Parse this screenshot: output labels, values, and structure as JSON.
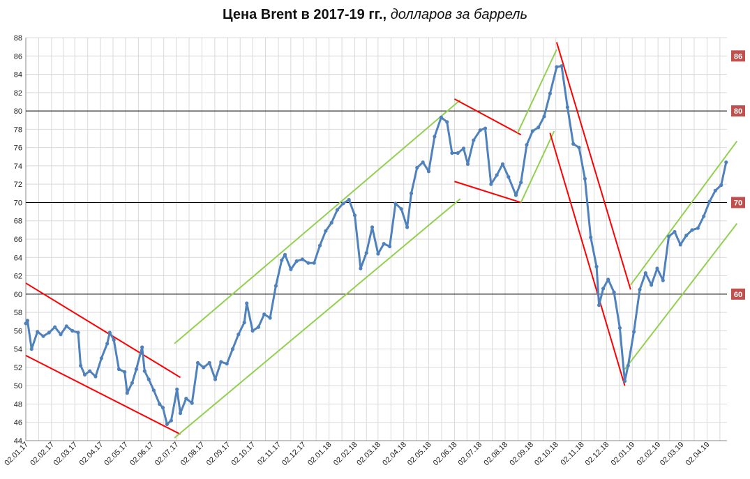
{
  "chart_data": {
    "type": "line",
    "title": "Цена Brent в 2017-19 гг.,",
    "subtitle": "долларов за баррель",
    "xlabel": "",
    "ylabel": "",
    "ylim": [
      44,
      88
    ],
    "yticks": [
      44,
      46,
      48,
      50,
      52,
      54,
      56,
      58,
      60,
      62,
      64,
      66,
      68,
      70,
      72,
      74,
      76,
      78,
      80,
      82,
      84,
      86,
      88
    ],
    "xlim": [
      "2017-01-02",
      "2019-04-26"
    ],
    "xtick_labels": [
      "02.01.17",
      "02.02.17",
      "02.03.17",
      "02.04.17",
      "02.05.17",
      "02.06.17",
      "02.07.17",
      "02.08.17",
      "02.09.17",
      "02.10.17",
      "02.11.17",
      "02.12.17",
      "02.01.18",
      "02.02.18",
      "02.03.18",
      "02.04.18",
      "02.05.18",
      "02.06.18",
      "02.07.18",
      "02.08.18",
      "02.09.18",
      "02.10.18",
      "02.11.18",
      "02.12.18",
      "02.01.19",
      "02.02.19",
      "02.03.19",
      "02.04.19"
    ],
    "grid": true,
    "series": [
      {
        "color": "#4f81bd",
        "x": [
          "2017-01-02",
          "2017-01-04",
          "2017-01-09",
          "2017-01-16",
          "2017-01-23",
          "2017-01-30",
          "2017-02-06",
          "2017-02-13",
          "2017-02-20",
          "2017-02-27",
          "2017-03-06",
          "2017-03-09",
          "2017-03-14",
          "2017-03-20",
          "2017-03-27",
          "2017-04-03",
          "2017-04-10",
          "2017-04-13",
          "2017-04-18",
          "2017-04-24",
          "2017-05-01",
          "2017-05-04",
          "2017-05-10",
          "2017-05-15",
          "2017-05-22",
          "2017-05-25",
          "2017-05-30",
          "2017-06-05",
          "2017-06-12",
          "2017-06-16",
          "2017-06-21",
          "2017-06-26",
          "2017-07-03",
          "2017-07-07",
          "2017-07-14",
          "2017-07-21",
          "2017-07-28",
          "2017-08-04",
          "2017-08-11",
          "2017-08-18",
          "2017-08-25",
          "2017-09-01",
          "2017-09-08",
          "2017-09-15",
          "2017-09-22",
          "2017-09-25",
          "2017-10-02",
          "2017-10-09",
          "2017-10-16",
          "2017-10-23",
          "2017-10-30",
          "2017-11-06",
          "2017-11-10",
          "2017-11-17",
          "2017-11-24",
          "2017-12-01",
          "2017-12-08",
          "2017-12-15",
          "2017-12-22",
          "2017-12-29",
          "2018-01-05",
          "2018-01-12",
          "2018-01-19",
          "2018-01-26",
          "2018-02-02",
          "2018-02-09",
          "2018-02-16",
          "2018-02-23",
          "2018-03-02",
          "2018-03-09",
          "2018-03-16",
          "2018-03-23",
          "2018-03-30",
          "2018-04-06",
          "2018-04-11",
          "2018-04-18",
          "2018-04-25",
          "2018-05-02",
          "2018-05-09",
          "2018-05-17",
          "2018-05-24",
          "2018-05-30",
          "2018-06-06",
          "2018-06-13",
          "2018-06-18",
          "2018-06-25",
          "2018-07-03",
          "2018-07-09",
          "2018-07-16",
          "2018-07-23",
          "2018-07-30",
          "2018-08-06",
          "2018-08-15",
          "2018-08-21",
          "2018-08-28",
          "2018-09-04",
          "2018-09-11",
          "2018-09-18",
          "2018-09-25",
          "2018-10-03",
          "2018-10-09",
          "2018-10-16",
          "2018-10-23",
          "2018-10-30",
          "2018-11-06",
          "2018-11-13",
          "2018-11-20",
          "2018-11-23",
          "2018-11-28",
          "2018-12-04",
          "2018-12-11",
          "2018-12-18",
          "2018-12-24",
          "2018-12-28",
          "2019-01-04",
          "2019-01-11",
          "2019-01-18",
          "2019-01-25",
          "2019-02-01",
          "2019-02-08",
          "2019-02-15",
          "2019-02-22",
          "2019-03-01",
          "2019-03-08",
          "2019-03-15",
          "2019-03-22",
          "2019-03-29",
          "2019-04-05",
          "2019-04-12",
          "2019-04-19",
          "2019-04-25"
        ],
        "values": [
          56.8,
          57.1,
          54.0,
          55.9,
          55.4,
          55.8,
          56.4,
          55.6,
          56.5,
          56.0,
          55.8,
          52.2,
          51.2,
          51.6,
          51.0,
          53.0,
          54.6,
          55.8,
          55.0,
          51.8,
          51.5,
          49.2,
          50.3,
          51.8,
          54.2,
          51.6,
          50.7,
          49.5,
          48.0,
          47.6,
          45.8,
          46.2,
          49.6,
          47.0,
          48.6,
          48.1,
          52.5,
          52.0,
          52.5,
          50.7,
          52.6,
          52.4,
          54.0,
          55.6,
          56.9,
          59.0,
          56.0,
          56.4,
          57.8,
          57.4,
          60.9,
          63.7,
          64.3,
          62.7,
          63.6,
          63.8,
          63.4,
          63.4,
          65.3,
          66.9,
          67.8,
          69.2,
          69.9,
          70.3,
          68.6,
          62.8,
          64.5,
          67.3,
          64.4,
          65.5,
          65.2,
          69.9,
          69.3,
          67.3,
          71.0,
          73.8,
          74.4,
          73.4,
          77.2,
          79.3,
          78.8,
          75.4,
          75.4,
          75.9,
          74.2,
          76.8,
          77.9,
          78.1,
          72.0,
          73.0,
          74.2,
          72.8,
          70.8,
          72.2,
          76.3,
          77.8,
          78.2,
          79.4,
          81.9,
          84.8,
          84.9,
          80.4,
          76.4,
          76.0,
          72.6,
          66.2,
          63.0,
          58.8,
          60.6,
          61.6,
          60.2,
          56.3,
          50.5,
          52.2,
          55.9,
          60.5,
          62.3,
          61.0,
          62.8,
          61.5,
          66.3,
          66.8,
          65.4,
          66.4,
          67.0,
          67.2,
          68.5,
          70.1,
          71.3,
          71.9,
          74.4
        ]
      }
    ],
    "reference_lines": [
      {
        "y": 80,
        "label": "80"
      },
      {
        "y": 70,
        "label": "70"
      },
      {
        "y": 60,
        "label": "60"
      }
    ],
    "tags": [
      {
        "y": 86,
        "label": "86"
      },
      {
        "y": 80,
        "label": "80"
      },
      {
        "y": 70,
        "label": "70"
      },
      {
        "y": 60,
        "label": "60"
      }
    ],
    "trend_lines": [
      {
        "color": "#ff0000",
        "from": [
          "2017-01-02",
          61.2
        ],
        "to": [
          "2017-07-07",
          50.9
        ]
      },
      {
        "color": "#ff0000",
        "from": [
          "2017-01-02",
          53.3
        ],
        "to": [
          "2017-07-07",
          44.7
        ]
      },
      {
        "color": "#92d050",
        "from": [
          "2017-06-30",
          54.6
        ],
        "to": [
          "2018-06-09",
          81.2
        ]
      },
      {
        "color": "#92d050",
        "from": [
          "2017-06-30",
          44.3
        ],
        "to": [
          "2018-06-09",
          70.4
        ]
      },
      {
        "color": "#ff0000",
        "from": [
          "2018-06-02",
          81.3
        ],
        "to": [
          "2018-08-21",
          77.4
        ]
      },
      {
        "color": "#ff0000",
        "from": [
          "2018-06-02",
          72.3
        ],
        "to": [
          "2018-08-21",
          70.0
        ]
      },
      {
        "color": "#92d050",
        "from": [
          "2018-08-17",
          77.6
        ],
        "to": [
          "2018-10-03",
          86.7
        ]
      },
      {
        "color": "#92d050",
        "from": [
          "2018-08-21",
          70.0
        ],
        "to": [
          "2018-09-30",
          77.8
        ]
      },
      {
        "color": "#ff0000",
        "from": [
          "2018-10-03",
          87.5
        ],
        "to": [
          "2018-12-31",
          60.5
        ]
      },
      {
        "color": "#ff0000",
        "from": [
          "2018-09-25",
          77.6
        ],
        "to": [
          "2018-12-24",
          50.0
        ]
      },
      {
        "color": "#92d050",
        "from": [
          "2018-12-31",
          61.0
        ],
        "to": [
          "2019-05-08",
          76.7
        ]
      },
      {
        "color": "#92d050",
        "from": [
          "2018-12-24",
          51.8
        ],
        "to": [
          "2019-05-08",
          67.7
        ]
      }
    ]
  },
  "colors": {
    "series": "#4f81bd",
    "trend_red": "#ff0000",
    "trend_green": "#92d050",
    "tag": "#c0504d",
    "grid": "#d9d9d9"
  }
}
